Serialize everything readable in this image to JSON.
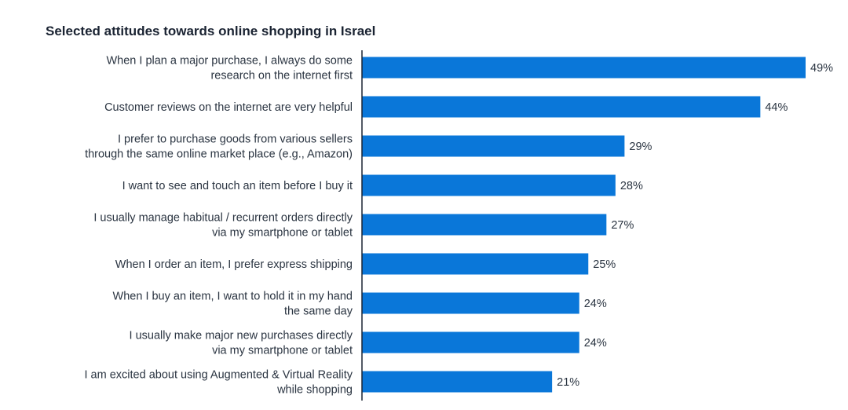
{
  "chart_data": {
    "type": "bar",
    "orientation": "horizontal",
    "title": "Selected attitudes towards online shopping in Israel",
    "categories": [
      [
        "When I plan a major purchase, I always do some",
        "research on the internet first"
      ],
      [
        "Customer reviews on the internet are very helpful"
      ],
      [
        "I prefer to purchase goods from various sellers",
        "through the same online market place (e.g., Amazon)"
      ],
      [
        "I want to see and touch an item before I buy it"
      ],
      [
        "I usually manage habitual / recurrent orders directly",
        "via my smartphone or tablet"
      ],
      [
        "When I order an item, I prefer express shipping"
      ],
      [
        "When I buy an item, I want to hold it in my hand",
        "the same day"
      ],
      [
        "I usually make major new purchases directly",
        "via my smartphone or tablet"
      ],
      [
        "I am excited about using Augmented & Virtual Reality",
        "while shopping"
      ]
    ],
    "values": [
      49,
      44,
      29,
      28,
      27,
      25,
      24,
      24,
      21
    ],
    "value_labels": [
      "49%",
      "44%",
      "29%",
      "28%",
      "27%",
      "25%",
      "24%",
      "24%",
      "21%"
    ],
    "unit": "%",
    "xlim": [
      0,
      49
    ],
    "grid": false,
    "legend": "none",
    "bar_color": "#0a77d9",
    "axis_color": "#1a2332"
  }
}
